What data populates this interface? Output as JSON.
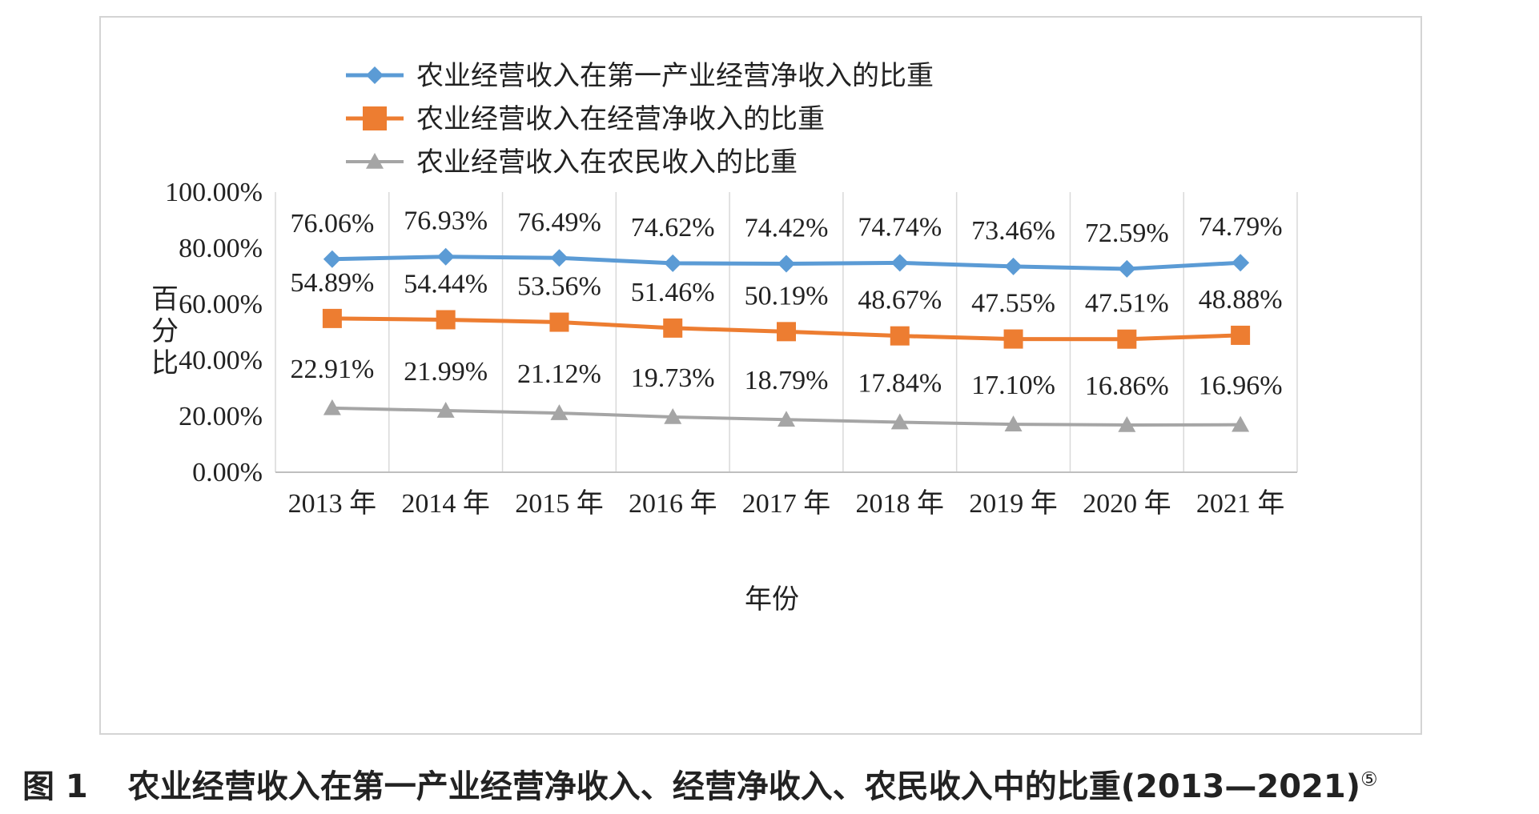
{
  "caption": {
    "figure_no": "图 1",
    "text": "农业经营收入在第一产业经营净收入、经营净收入、农民收入中的比重(2013—2021)",
    "note_mark": "⑤"
  },
  "chart_data": {
    "type": "line",
    "title": "",
    "xlabel": "年份",
    "ylabel": "百分比",
    "ylim": [
      0,
      100
    ],
    "y_ticks": [
      "0.00%",
      "20.00%",
      "40.00%",
      "60.00%",
      "80.00%",
      "100.00%"
    ],
    "grid": "vertical",
    "legend_position": "top",
    "categories": [
      "2013 年",
      "2014 年",
      "2015 年",
      "2016 年",
      "2017 年",
      "2018 年",
      "2019 年",
      "2020 年",
      "2021 年"
    ],
    "series": [
      {
        "name": "农业经营收入在第一产业经营净收入的比重",
        "marker": "diamond",
        "color": "#5b9bd5",
        "values": [
          76.06,
          76.93,
          76.49,
          74.62,
          74.42,
          74.74,
          73.46,
          72.59,
          74.79
        ],
        "labels": [
          "76.06%",
          "76.93%",
          "76.49%",
          "74.62%",
          "74.42%",
          "74.74%",
          "73.46%",
          "72.59%",
          "74.79%"
        ]
      },
      {
        "name": "农业经营收入在经营净收入的比重",
        "marker": "square",
        "color": "#ed7d31",
        "values": [
          54.89,
          54.44,
          53.56,
          51.46,
          50.19,
          48.67,
          47.55,
          47.51,
          48.88
        ],
        "labels": [
          "54.89%",
          "54.44%",
          "53.56%",
          "51.46%",
          "50.19%",
          "48.67%",
          "47.55%",
          "47.51%",
          "48.88%"
        ]
      },
      {
        "name": "农业经营收入在农民收入的比重",
        "marker": "triangle",
        "color": "#a5a5a5",
        "values": [
          22.91,
          21.99,
          21.12,
          19.73,
          18.79,
          17.84,
          17.1,
          16.86,
          16.96
        ],
        "labels": [
          "22.91%",
          "21.99%",
          "21.12%",
          "19.73%",
          "18.79%",
          "17.84%",
          "17.10%",
          "16.86%",
          "16.96%"
        ]
      }
    ]
  }
}
